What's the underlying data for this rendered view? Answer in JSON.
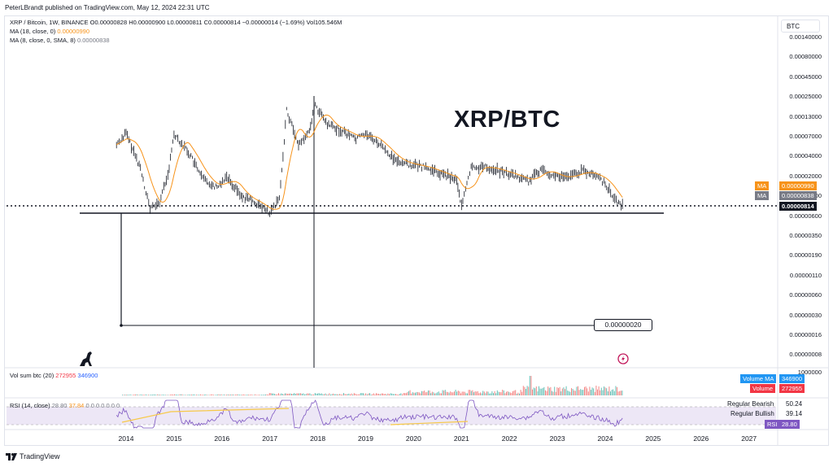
{
  "header": {
    "publisher": "PeterLBrandt published on TradingView.com, May 12, 2024 22:31 UTC"
  },
  "legend": {
    "symbol": "XRP / Bitcoin, 1W, BINANCE",
    "ohlc": "O0.00000828 H0.00000900 L0.00000811 C0.00000814 −0.00000014 (−1.69%) Vol105.546M",
    "ma18_label": "MA (18, close, 0)",
    "ma18_value": "0.00000990",
    "ma8_label": "MA (8, close, 0, SMA, 8)",
    "ma8_value": "0.00000838"
  },
  "price_scale": {
    "currency": "BTC",
    "labels": [
      "0.00140000",
      "0.00080000",
      "0.00045000",
      "0.00025000",
      "0.00013000",
      "0.00007000",
      "0.00004000",
      "0.00002000",
      "0.00001000",
      "0.00000600",
      "0.00000350",
      "0.00000190",
      "0.00000110",
      "0.00000060",
      "0.00000030",
      "0.00000016",
      "0.00000008"
    ],
    "tag_ma18_name": "MA",
    "tag_ma18_value": "0.00000990",
    "tag_ma8_name": "MA",
    "tag_ma8_value": "0.00000838",
    "tag_last": "0.00000814",
    "colors": {
      "ma18": "#f7931a",
      "ma8": "#787b86",
      "last": "#131722"
    }
  },
  "annotation": {
    "title": "XRP/BTC",
    "callout": "0.00000020"
  },
  "volume_pane": {
    "legend_label": "Vol sum btc (20)",
    "value_red": "272955",
    "value_blue": "346900",
    "scale_top": "1000000",
    "tag_ma_name": "Volume MA",
    "tag_ma_value": "346900",
    "tag_vol_name": "Volume",
    "tag_vol_value": "272955"
  },
  "rsi_pane": {
    "legend_label": "RSI (14, close)",
    "value_a": "28.80",
    "value_b": "37.84",
    "value_zeros": "0 0 0 0 0 0 0",
    "regular_bearish_label": "Regular Bearish",
    "regular_bearish_value": "50.24",
    "regular_bullish_label": "Regular Bullish",
    "regular_bullish_value": "39.14",
    "tag_name": "RSI",
    "tag_value": "28.80"
  },
  "x_axis": {
    "labels": [
      "2014",
      "2015",
      "2016",
      "2017",
      "2018",
      "2019",
      "2020",
      "2021",
      "2022",
      "2023",
      "2024",
      "2025",
      "2026",
      "2027"
    ]
  },
  "footer": {
    "brand": "TradingView"
  },
  "chart_data": {
    "type": "line",
    "y_scale": "log",
    "x": [
      2013.8,
      2014.0,
      2014.3,
      2014.5,
      2014.7,
      2014.9,
      2015.0,
      2015.3,
      2015.6,
      2015.9,
      2016.1,
      2016.4,
      2016.7,
      2017.0,
      2017.2,
      2017.35,
      2017.6,
      2017.8,
      2017.95,
      2018.2,
      2018.5,
      2018.8,
      2019.0,
      2019.3,
      2019.6,
      2019.9,
      2020.2,
      2020.5,
      2020.9,
      2021.0,
      2021.2,
      2021.5,
      2021.8,
      2022.1,
      2022.4,
      2022.7,
      2022.9,
      2023.2,
      2023.5,
      2023.8,
      2024.0,
      2024.2,
      2024.36
    ],
    "series": [
      {
        "values": [
          5e-05,
          7e-05,
          2.5e-05,
          7.5e-06,
          9e-06,
          2.5e-05,
          7e-05,
          4e-05,
          1.8e-05,
          1.4e-05,
          2e-05,
          1.1e-05,
          9e-06,
          6.5e-06,
          1e-05,
          0.00014,
          5e-05,
          7e-05,
          0.00016,
          9e-05,
          7.5e-05,
          6e-05,
          7e-05,
          5e-05,
          3.2e-05,
          2.8e-05,
          2.6e-05,
          2.2e-05,
          1.8e-05,
          8e-06,
          2.5e-05,
          2.6e-05,
          2.3e-05,
          2e-05,
          1.7e-05,
          2.5e-05,
          2e-05,
          1.9e-05,
          2.3e-05,
          2e-05,
          1.6e-05,
          1e-05,
          8.1e-06
        ]
      }
    ],
    "levels": {
      "support": 6.8e-06,
      "projection_target": 2e-07,
      "last": 8.14e-06
    }
  }
}
